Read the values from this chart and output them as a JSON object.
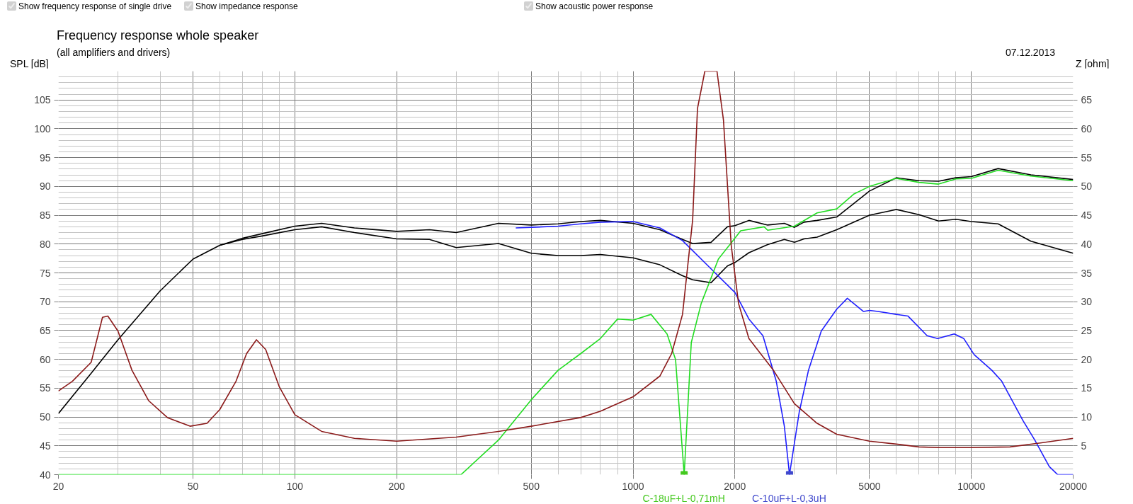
{
  "chart_data": {
    "type": "line",
    "title": "Frequency response whole speaker",
    "subtitle": "(all amplifiers and drivers)",
    "ylabel": "SPL [dB]",
    "y2label": "Z [ohm]",
    "annotations": [
      "Show frequency response of single drive",
      "Show impedance response",
      "Show acoustic power response",
      "07.12.2013"
    ],
    "xlim": [
      20,
      20000
    ],
    "xticks": [
      20,
      50,
      100,
      200,
      500,
      1000,
      2000,
      5000,
      10000,
      20000
    ],
    "log": "x",
    "ylim": [
      40,
      110
    ],
    "yticks": [
      40,
      45,
      50,
      55,
      60,
      65,
      70,
      75,
      80,
      85,
      90,
      95,
      100,
      105
    ],
    "y2lim": [
      0,
      70
    ],
    "y2ticks": [
      5,
      10,
      15,
      20,
      25,
      30,
      35,
      40,
      45,
      50,
      55,
      60,
      65
    ],
    "grid": true,
    "series": [
      {
        "color": "#000000",
        "x": [
          20,
          25,
          30,
          40,
          50,
          60,
          70,
          80,
          100,
          120,
          150,
          200,
          250,
          300,
          400,
          500,
          600,
          700,
          800,
          1000,
          1200,
          1400,
          1500,
          1700,
          1900,
          2000,
          2200,
          2500,
          2800,
          3000,
          3200,
          3500,
          4000,
          5000,
          6000,
          7000,
          8000,
          9000,
          10000,
          12000,
          15000,
          20000
        ],
        "values": [
          50.6,
          57.6,
          63.4,
          71.9,
          77.4,
          79.8,
          81,
          81.8,
          83.1,
          83.6,
          82.8,
          82.2,
          82.5,
          82,
          83.6,
          83.3,
          83.5,
          83.9,
          84.1,
          83.6,
          82.5,
          80.8,
          80.1,
          80.3,
          83,
          83.2,
          84.1,
          83.3,
          83.6,
          82.9,
          83.8,
          84.1,
          84.7,
          89.2,
          91.5,
          91,
          90.9,
          91.5,
          91.7,
          93.1,
          92,
          91.2
        ]
      },
      {
        "color": "#000000",
        "x": [
          60,
          70,
          80,
          100,
          120,
          150,
          200,
          250,
          300,
          400,
          500,
          600,
          700,
          800,
          1000,
          1200,
          1400,
          1500,
          1700,
          1900,
          2000,
          2200,
          2500,
          2800,
          3000,
          3200,
          3500,
          4000,
          5000,
          6000,
          7000,
          8000,
          9000,
          10000,
          12000,
          15000,
          20000
        ],
        "values": [
          79.8,
          80.8,
          81.4,
          82.5,
          83,
          82,
          80.9,
          80.8,
          79.4,
          80.1,
          78.4,
          78,
          78,
          78.2,
          77.6,
          76.4,
          74.5,
          73.8,
          73.3,
          76.2,
          76.8,
          78.5,
          79.9,
          80.8,
          80.3,
          80.9,
          81.2,
          82.5,
          85,
          86,
          85.1,
          84,
          84.3,
          83.9,
          83.5,
          80.5,
          78.4
        ]
      },
      {
        "color": "#1f1fff",
        "x": [
          450,
          500,
          600,
          700,
          800,
          1000,
          1200,
          1400,
          1700,
          2000,
          2200,
          2420,
          2650,
          2800,
          2900,
          3100,
          3300,
          3600,
          4000,
          4300,
          4800,
          5000,
          5300,
          6000,
          6500,
          7400,
          7950,
          8900,
          9500,
          10200,
          11500,
          12300,
          14200,
          15400,
          17000,
          18000,
          20000
        ],
        "values": [
          82.8,
          82.9,
          83.1,
          83.5,
          83.8,
          83.9,
          82.8,
          80.6,
          75.7,
          71.6,
          67,
          64.1,
          56.2,
          48.4,
          40,
          50.9,
          58.1,
          64.9,
          68.7,
          70.6,
          68.3,
          68.5,
          68.3,
          67.8,
          67.5,
          64.1,
          63.6,
          64.4,
          63.6,
          60.8,
          58.1,
          56.2,
          49.4,
          46,
          41.4,
          40,
          40
        ]
      },
      {
        "color": "#22dd22",
        "x": [
          20,
          310,
          400,
          500,
          600,
          700,
          800,
          900,
          1000,
          1130,
          1260,
          1335,
          1416,
          1486,
          1590,
          1787,
          1968,
          2080,
          2440,
          2500,
          3000,
          3500,
          4000,
          4500,
          5000,
          6000,
          7000,
          8000,
          9000,
          10000,
          12000,
          15000,
          20000
        ],
        "values": [
          40,
          40,
          46,
          53,
          58.1,
          61,
          63.6,
          67,
          66.8,
          67.8,
          64.4,
          60,
          40,
          62.9,
          69.7,
          77.4,
          80.5,
          82.3,
          83,
          82.4,
          83.1,
          85.4,
          86.1,
          88.7,
          90,
          91.4,
          90.7,
          90.4,
          91.3,
          91.4,
          92.8,
          91.8,
          91
        ]
      },
      {
        "color": "#8b1a1a",
        "axis": "y2",
        "x": [
          20,
          22,
          25,
          27,
          28,
          30,
          33,
          37,
          42,
          49,
          55,
          60,
          67,
          72,
          77,
          82,
          90,
          100,
          120,
          150,
          200,
          300,
          400,
          500,
          700,
          800,
          1000,
          1200,
          1300,
          1400,
          1500,
          1550,
          1630,
          1770,
          1850,
          1950,
          2050,
          2200,
          2600,
          3000,
          3500,
          4000,
          5000,
          6000,
          7000,
          8000,
          10000,
          13000,
          16000,
          20000
        ],
        "values": [
          14.5,
          16.2,
          19.5,
          27.3,
          27.5,
          24.9,
          18.1,
          12.8,
          9.9,
          8.4,
          8.9,
          11.3,
          16.2,
          21,
          23.4,
          21.7,
          15.2,
          10.4,
          7.5,
          6.3,
          5.8,
          6.5,
          7.5,
          8.4,
          9.9,
          11,
          13.5,
          17.1,
          21,
          27.8,
          44.2,
          63.5,
          70,
          70,
          61.5,
          39.8,
          29.7,
          23.6,
          18.1,
          12.3,
          8.9,
          7,
          5.8,
          5.3,
          4.8,
          4.7,
          4.7,
          4.8,
          5.5,
          6.3
        ]
      },
      {
        "type": "scatter",
        "marker": "square",
        "name": "C-18uF+L-0,71mH",
        "color": "#44c81e",
        "x": [
          1416
        ],
        "values": [
          40
        ]
      },
      {
        "type": "scatter",
        "marker": "square",
        "name": "C-10uF+L-0,3uH",
        "color": "#3f48cc",
        "x": [
          2900
        ],
        "values": [
          40
        ]
      }
    ]
  }
}
